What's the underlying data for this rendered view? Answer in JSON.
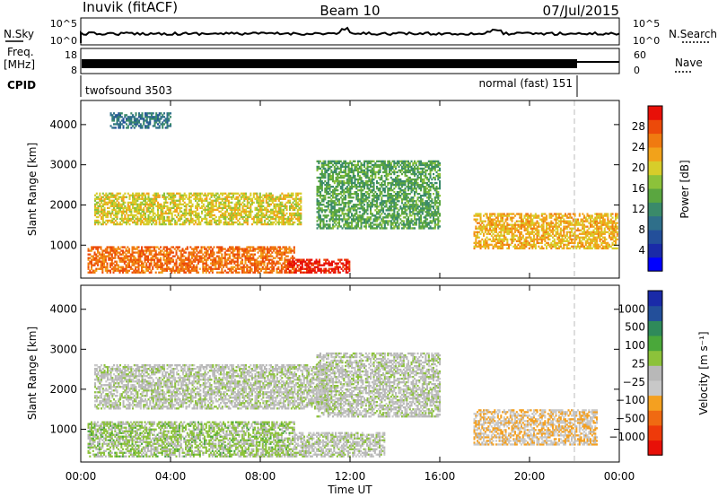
{
  "header": {
    "station": "Inuvik (fitACF)",
    "beam": "Beam 10",
    "date": "07/Jul/2015"
  },
  "strip_panels": {
    "nsky": {
      "label": "N.Sky",
      "tick_top": "10^5",
      "tick_bottom": "10^0"
    },
    "nsearch": {
      "label": "N.Search",
      "tick_top": "10^5",
      "tick_bottom": "10^0"
    },
    "freq": {
      "label_line1": "Freq.",
      "label_line2": "[MHz]",
      "tick_top": "18",
      "tick_bottom": "8"
    },
    "nave": {
      "label": "Nave",
      "tick_top": "60",
      "tick_bottom": "0"
    },
    "cpid": {
      "label": "CPID",
      "programs": [
        {
          "name": "twofsound 3503",
          "start_hour": 0,
          "end_hour": 22
        },
        {
          "name": "normal (fast) 151",
          "start_hour": 22,
          "end_hour": 24
        }
      ]
    }
  },
  "x_axis": {
    "label": "Time UT",
    "ticks": [
      "00:00",
      "04:00",
      "08:00",
      "12:00",
      "16:00",
      "20:00",
      "00:00"
    ],
    "range_hours": [
      0,
      24
    ]
  },
  "chart_data": [
    {
      "type": "heatmap",
      "name": "power",
      "ylabel": "Slant Range [km]",
      "yticks": [
        "1000",
        "2000",
        "3000",
        "4000"
      ],
      "ylim": [
        180,
        4600
      ],
      "colorbar": {
        "label": "Power [dB]",
        "ticks": [
          "4",
          "8",
          "12",
          "16",
          "20",
          "24",
          "28"
        ],
        "range": [
          0,
          32
        ],
        "colors": [
          "#0000ff",
          "#1a2aa8",
          "#234f9a",
          "#2f6f8a",
          "#3a8a6a",
          "#5aa640",
          "#8cc23a",
          "#d7cd2a",
          "#f2a21a",
          "#f07a10",
          "#ec4a0a",
          "#e81008"
        ]
      },
      "bands": [
        {
          "t": [
            0.3,
            9.5
          ],
          "r": [
            300,
            950
          ],
          "value": 26
        },
        {
          "t": [
            9.2,
            12.0
          ],
          "r": [
            300,
            650
          ],
          "value": 30
        },
        {
          "t": [
            0.6,
            9.8
          ],
          "r": [
            1500,
            2300
          ],
          "value": 20
        },
        {
          "t": [
            10.5,
            16.0
          ],
          "r": [
            1400,
            3100
          ],
          "value": 14
        },
        {
          "t": [
            17.5,
            23.9
          ],
          "r": [
            900,
            1800
          ],
          "value": 22
        },
        {
          "t": [
            1.3,
            4.0
          ],
          "r": [
            3900,
            4300
          ],
          "value": 10
        }
      ]
    },
    {
      "type": "heatmap",
      "name": "velocity",
      "ylabel": "Slant Range [km]",
      "yticks": [
        "1000",
        "2000",
        "3000",
        "4000"
      ],
      "ylim": [
        180,
        4600
      ],
      "colorbar": {
        "label": "Velocity [m s⁻¹]",
        "ticks": [
          "1000",
          "500",
          "100",
          "25",
          "−25",
          "−100",
          "−500",
          "−1000"
        ],
        "range": [
          -1200,
          1200
        ],
        "colors": [
          "#e81008",
          "#ee3a0a",
          "#f06a12",
          "#f4a020",
          "#c8c8c8",
          "#b8b8b8",
          "#8cc23a",
          "#4aa83a",
          "#2f8a5a",
          "#234f9a",
          "#1a2aa8"
        ]
      },
      "bands": [
        {
          "t": [
            0.3,
            9.5
          ],
          "r": [
            300,
            1200
          ],
          "value": 150
        },
        {
          "t": [
            0.6,
            11.0
          ],
          "r": [
            1500,
            2600
          ],
          "value": 0
        },
        {
          "t": [
            9.5,
            13.5
          ],
          "r": [
            300,
            900
          ],
          "value": 0
        },
        {
          "t": [
            17.5,
            23.0
          ],
          "r": [
            600,
            1500
          ],
          "value": -300
        },
        {
          "t": [
            10.5,
            16.0
          ],
          "r": [
            1300,
            2900
          ],
          "value": -20
        }
      ]
    }
  ]
}
